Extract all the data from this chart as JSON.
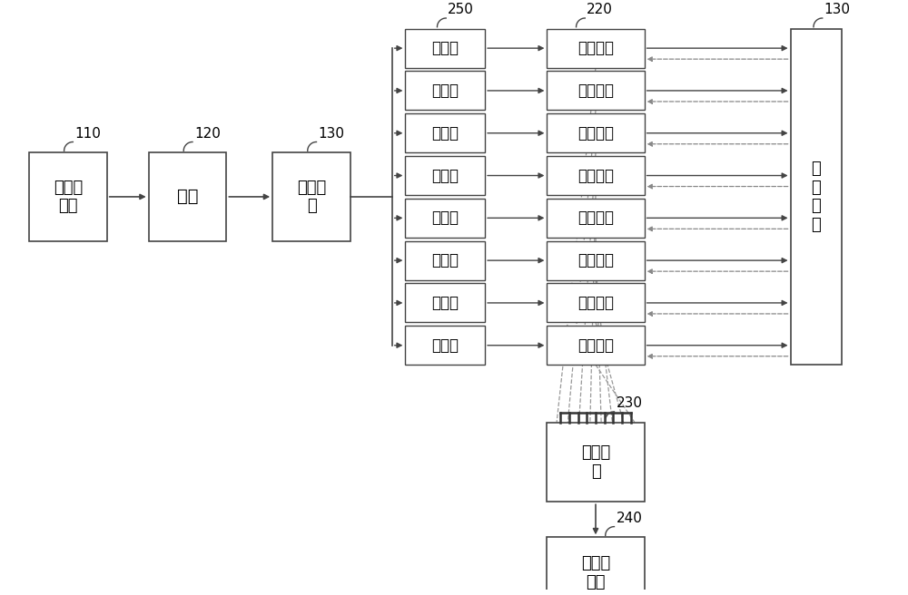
{
  "bg_color": "#ffffff",
  "box_edge_color": "#444444",
  "line_color": "#444444",
  "text_color": "#000000",
  "n_channels": 8,
  "switch_label": "光开关",
  "circulator_label": "光环形器",
  "optical_unit_label": "光\n学\n单\n元",
  "ref_110": "110",
  "ref_120": "120",
  "ref_130": "130",
  "ref_250": "250",
  "ref_220": "220",
  "ref_230": "230",
  "ref_240": "240",
  "ref_130_right": "130",
  "label_110": "激光发\n射器",
  "label_120": "光纤",
  "label_130": "光分束\n器",
  "label_230": "光合束\n器",
  "label_240": "激光接\n收器"
}
